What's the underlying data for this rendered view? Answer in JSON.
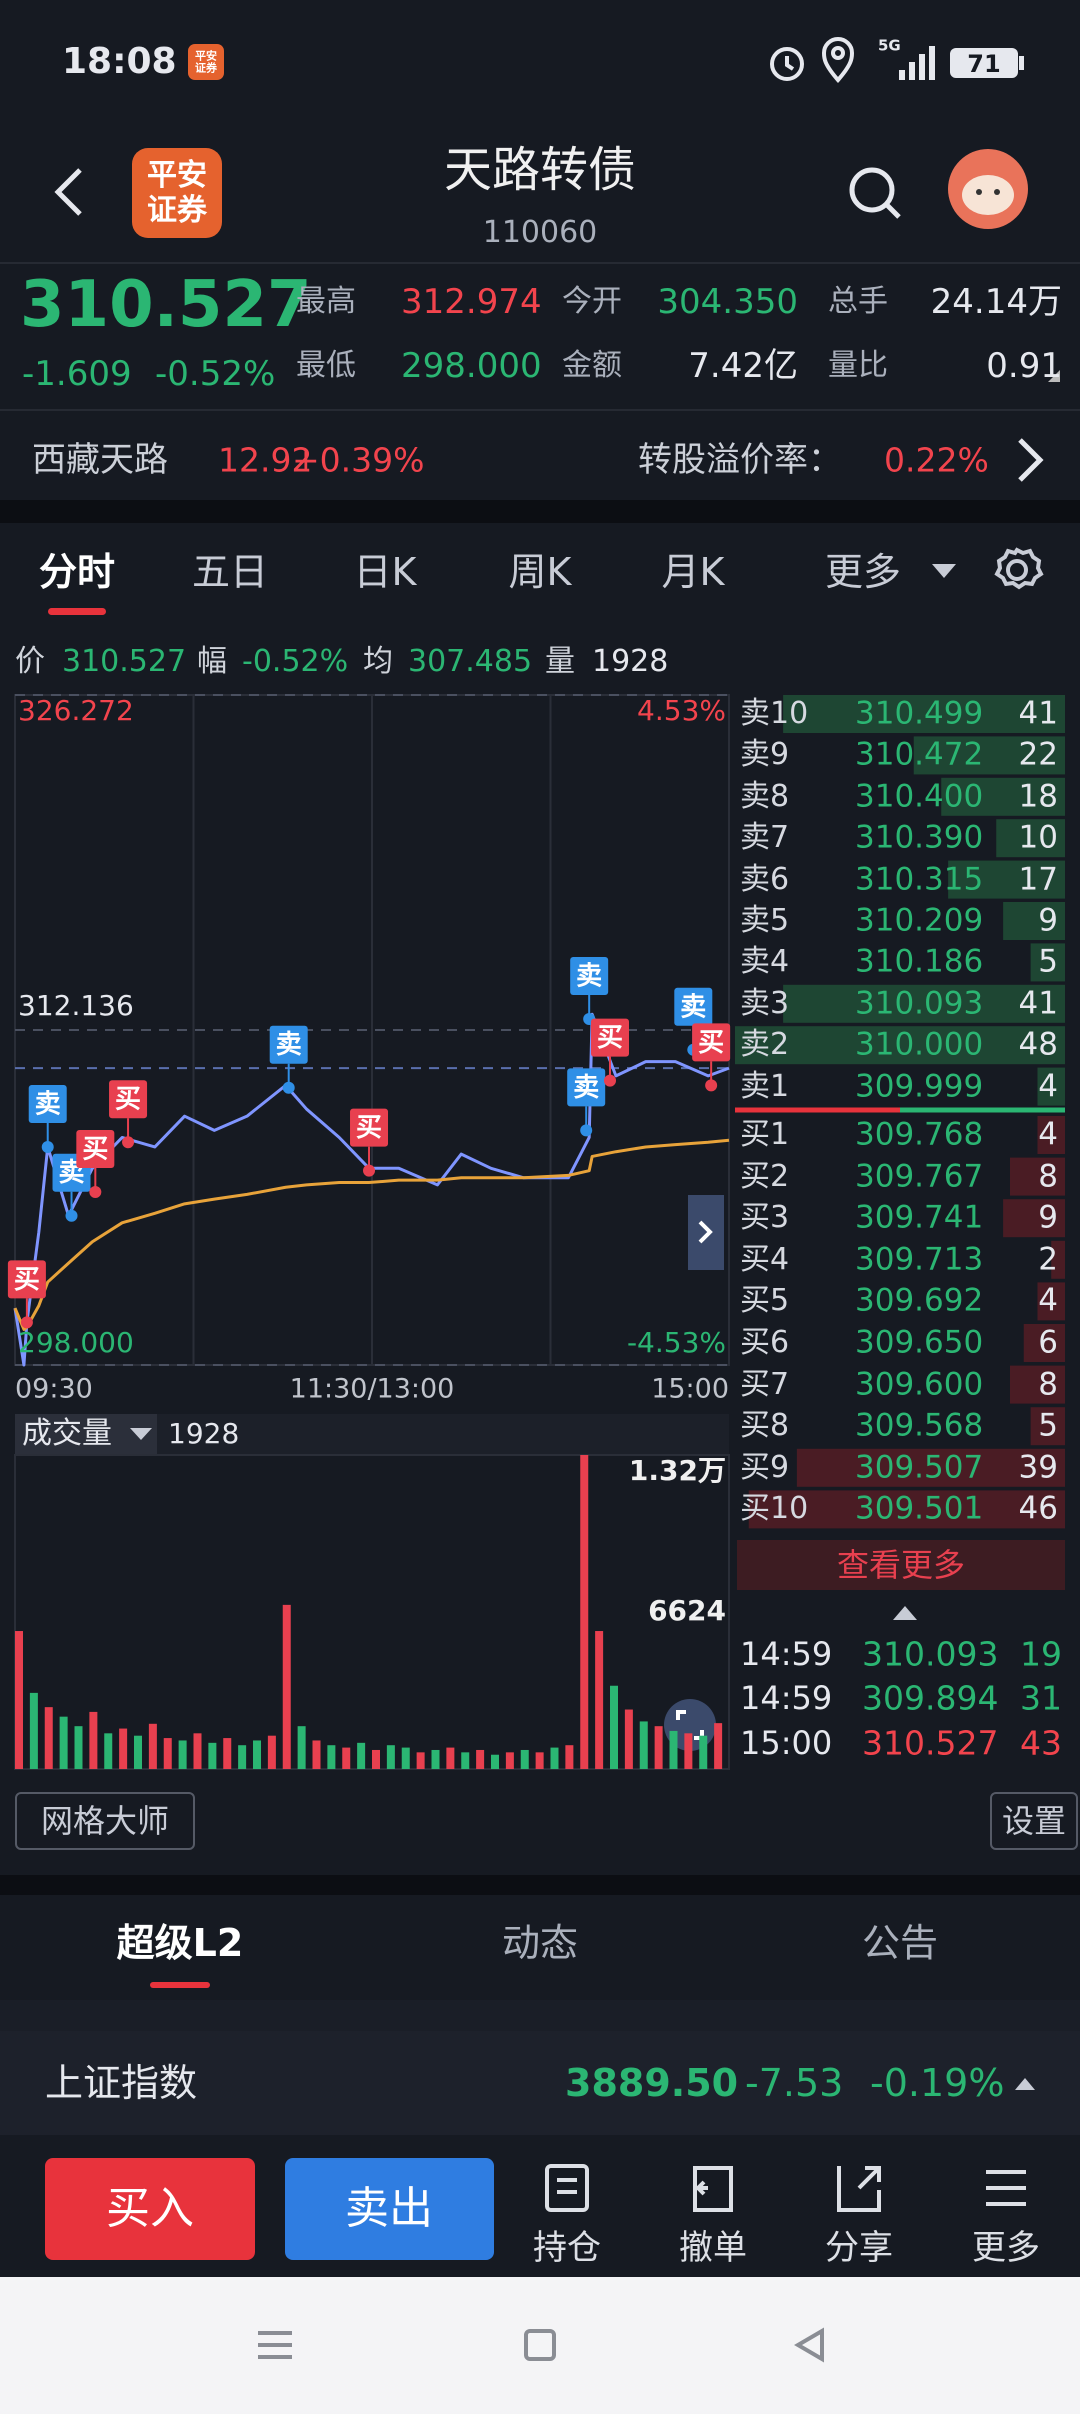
{
  "status_bar": {
    "time": "18:08",
    "app_badge": "平安证券",
    "network": "5G",
    "battery": "71"
  },
  "header": {
    "logo": [
      "平安",
      "证券"
    ],
    "title": "天路转债",
    "code": "110060"
  },
  "quote": {
    "price": "310.527",
    "change": "-1.609",
    "change_pct": "-0.52%",
    "stats": [
      {
        "label": "最高",
        "value": "312.974"
      },
      {
        "label": "今开",
        "value": "304.350"
      },
      {
        "label": "总手",
        "value": "24.14万"
      },
      {
        "label": "最低",
        "value": "298.000"
      },
      {
        "label": "金额",
        "value": "7.42亿"
      },
      {
        "label": "量比",
        "value": "0.91"
      }
    ]
  },
  "underlying": {
    "name": "西藏天路",
    "price": "12.92",
    "change_pct": "+0.39%",
    "premium_label": "转股溢价率：",
    "premium": "0.22%"
  },
  "tabs": {
    "items": [
      "分时",
      "五日",
      "日K",
      "周K",
      "月K",
      "更多"
    ],
    "active": 0
  },
  "info_line": [
    {
      "label": "价",
      "value": "310.527"
    },
    {
      "label": "幅",
      "value": "-0.52%"
    },
    {
      "label": "均",
      "value": "307.485"
    },
    {
      "label": "量",
      "value": "1928"
    }
  ],
  "chart_data": [
    {
      "type": "line",
      "x": [
        0,
        3,
        4,
        8,
        11,
        18,
        26,
        36,
        47,
        57,
        67,
        78,
        91,
        98,
        109,
        119,
        129,
        142,
        150,
        160,
        171,
        186,
        193,
        194,
        202,
        212,
        222,
        233,
        240
      ],
      "series": [
        {
          "color": "#7f95ff",
          "values": [
            300.4,
            298.0,
            299.8,
            303.6,
            307.2,
            304.3,
            306.3,
            307.6,
            307.2,
            308.5,
            307.9,
            308.5,
            309.8,
            308.8,
            307.6,
            306.3,
            306.3,
            305.6,
            306.9,
            306.3,
            305.9,
            305.9,
            307.6,
            312.8,
            310.2,
            310.8,
            310.8,
            310.2,
            310.527
          ]
        },
        {
          "color": "#e8a33a",
          "values": [
            300.4,
            299.5,
            299.6,
            300.5,
            301.5,
            302.3,
            303.2,
            304.0,
            304.4,
            304.8,
            305.0,
            305.2,
            305.5,
            305.6,
            305.7,
            305.7,
            305.8,
            305.8,
            305.9,
            305.9,
            305.9,
            306.0,
            306.2,
            306.8,
            307.0,
            307.2,
            307.3,
            307.4,
            307.485
          ]
        }
      ],
      "xlim": [
        0,
        240
      ],
      "xticks": [
        {
          "value": 0,
          "label": "09:30"
        },
        {
          "value": 120,
          "label": "11:30/13:00"
        },
        {
          "value": 240,
          "label": "15:00"
        }
      ],
      "xgrid": [
        60,
        120,
        180
      ],
      "ylim": [
        298,
        326.272
      ],
      "yticks": [
        {
          "value": 326.272,
          "label": "326.272"
        },
        {
          "value": 312.136,
          "label": "312.136"
        },
        {
          "value": 298,
          "label": "298.000"
        }
      ],
      "y2lim": [
        -4.53,
        4.53
      ],
      "y2ticks": [
        {
          "value": 4.53,
          "label": "4.53%"
        },
        {
          "value": -4.53,
          "label": "-4.53%"
        }
      ],
      "markers": [
        {
          "label": "买",
          "x": 4,
          "y": 299.8,
          "color": "#e8404f"
        },
        {
          "label": "卖",
          "x": 11,
          "y": 307.2,
          "color": "#2f8fe6"
        },
        {
          "label": "卖",
          "x": 19,
          "y": 304.3,
          "color": "#2f8fe6"
        },
        {
          "label": "买",
          "x": 27,
          "y": 305.3,
          "color": "#e8404f"
        },
        {
          "label": "买",
          "x": 38,
          "y": 307.4,
          "color": "#e8404f"
        },
        {
          "label": "卖",
          "x": 92,
          "y": 309.7,
          "color": "#2f8fe6"
        },
        {
          "label": "买",
          "x": 119,
          "y": 306.2,
          "color": "#e8404f"
        },
        {
          "label": "卖",
          "x": 193,
          "y": 312.6,
          "color": "#2f8fe6"
        },
        {
          "label": "卖",
          "x": 192,
          "y": 307.9,
          "color": "#2f8fe6"
        },
        {
          "label": "买",
          "x": 200,
          "y": 310.0,
          "color": "#e8404f"
        },
        {
          "label": "卖",
          "x": 228,
          "y": 311.3,
          "color": "#2f8fe6"
        },
        {
          "label": "买",
          "x": 234,
          "y": 309.8,
          "color": "#e8404f"
        }
      ]
    },
    {
      "type": "bar",
      "title": "成交量",
      "subtitle": "1928",
      "x": [
        0,
        5,
        10,
        15,
        20,
        25,
        30,
        35,
        40,
        45,
        50,
        55,
        60,
        65,
        70,
        75,
        80,
        85,
        90,
        95,
        100,
        105,
        110,
        115,
        120,
        125,
        130,
        135,
        140,
        145,
        150,
        155,
        160,
        165,
        170,
        175,
        180,
        185,
        190,
        195,
        200,
        205,
        210,
        215,
        220,
        225,
        230,
        235
      ],
      "values": [
        5800,
        3200,
        2600,
        2200,
        1800,
        2400,
        1500,
        1700,
        1400,
        1900,
        1300,
        1200,
        1500,
        1100,
        1300,
        1000,
        1200,
        1400,
        6900,
        1800,
        1200,
        1000,
        900,
        1100,
        800,
        1000,
        900,
        700,
        800,
        900,
        700,
        800,
        600,
        700,
        800,
        700,
        900,
        1000,
        13200,
        5800,
        3500,
        2500,
        2000,
        1800,
        1600,
        1500,
        1400,
        1928
      ],
      "colors": [
        "#e8404f",
        "#2bb673",
        "#e8404f",
        "#2bb673",
        "#2bb673",
        "#e8404f",
        "#2bb673",
        "#e8404f",
        "#2bb673",
        "#e8404f",
        "#e8404f",
        "#2bb673",
        "#e8404f",
        "#2bb673",
        "#e8404f",
        "#2bb673",
        "#2bb673",
        "#e8404f",
        "#e8404f",
        "#2bb673",
        "#e8404f",
        "#2bb673",
        "#e8404f",
        "#2bb673",
        "#e8404f",
        "#2bb673",
        "#2bb673",
        "#e8404f",
        "#2bb673",
        "#e8404f",
        "#2bb673",
        "#e8404f",
        "#2bb673",
        "#e8404f",
        "#2bb673",
        "#e8404f",
        "#2bb673",
        "#e8404f",
        "#e8404f",
        "#e8404f",
        "#2bb673",
        "#e8404f",
        "#2bb673",
        "#e8404f",
        "#2bb673",
        "#e8404f",
        "#2bb673",
        "#e8404f"
      ],
      "xlim": [
        0,
        240
      ],
      "ylim": [
        0,
        13200
      ],
      "yticks": [
        {
          "value": 13200,
          "label": "1.32万"
        },
        6624
      ]
    }
  ],
  "order_book": {
    "asks": [
      {
        "label": "卖10",
        "price": "310.499",
        "qty": 41
      },
      {
        "label": "卖9",
        "price": "310.472",
        "qty": 22
      },
      {
        "label": "卖8",
        "price": "310.400",
        "qty": 18
      },
      {
        "label": "卖7",
        "price": "310.390",
        "qty": 10
      },
      {
        "label": "卖6",
        "price": "310.315",
        "qty": 17
      },
      {
        "label": "卖5",
        "price": "310.209",
        "qty": 9
      },
      {
        "label": "卖4",
        "price": "310.186",
        "qty": 5
      },
      {
        "label": "卖3",
        "price": "310.093",
        "qty": 41
      },
      {
        "label": "卖2",
        "price": "310.000",
        "qty": 48
      },
      {
        "label": "卖1",
        "price": "309.999",
        "qty": 4
      }
    ],
    "bids": [
      {
        "label": "买1",
        "price": "309.768",
        "qty": 4
      },
      {
        "label": "买2",
        "price": "309.767",
        "qty": 8
      },
      {
        "label": "买3",
        "price": "309.741",
        "qty": 9
      },
      {
        "label": "买4",
        "price": "309.713",
        "qty": 2
      },
      {
        "label": "买5",
        "price": "309.692",
        "qty": 4
      },
      {
        "label": "买6",
        "price": "309.650",
        "qty": 6
      },
      {
        "label": "买7",
        "price": "309.600",
        "qty": 8
      },
      {
        "label": "买8",
        "price": "309.568",
        "qty": 5
      },
      {
        "label": "买9",
        "price": "309.507",
        "qty": 39
      },
      {
        "label": "买10",
        "price": "309.501",
        "qty": 46
      }
    ],
    "more": "查看更多",
    "trades": [
      {
        "time": "14:59",
        "price": "310.093",
        "qty": 19,
        "color": "#2bb673"
      },
      {
        "time": "14:59",
        "price": "309.894",
        "qty": 31,
        "color": "#2bb673"
      },
      {
        "time": "15:00",
        "price": "310.527",
        "qty": 43,
        "color": "#f2444d"
      }
    ]
  },
  "tools": {
    "grid": "网格大师",
    "settings": "设置"
  },
  "bottom_tabs": {
    "items": [
      "超级L2",
      "动态",
      "公告"
    ],
    "active": 0
  },
  "index_bar": {
    "name": "上证指数",
    "value": "3889.50",
    "change": "-7.53",
    "change_pct": "-0.19%"
  },
  "actions": {
    "buy": "买入",
    "sell": "卖出",
    "tools": [
      "持仓",
      "撤单",
      "分享",
      "更多"
    ]
  }
}
